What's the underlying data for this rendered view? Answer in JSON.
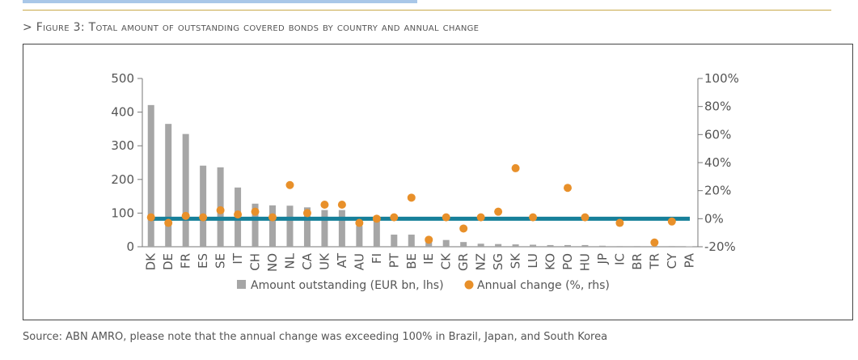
{
  "figure_title": "> Figure 3: Total amount of outstanding covered bonds by country and annual change",
  "source_note": "Source: ABN AMRO, please note that the annual change was exceeding 100% in Brazil, Japan, and South Korea",
  "colors": {
    "bars": "#a6a6a6",
    "dots": "#e8902a",
    "zero_line": "#17809a",
    "title_rule": "#c9a94a",
    "top_bar": "#a9c7e8"
  },
  "chart_data": {
    "type": "bar",
    "categories": [
      "DK",
      "DE",
      "FR",
      "ES",
      "SE",
      "IT",
      "CH",
      "NO",
      "NL",
      "CA",
      "UK",
      "AT",
      "AU",
      "FI",
      "PT",
      "BE",
      "IE",
      "CK",
      "GR",
      "NZ",
      "SG",
      "SK",
      "LU",
      "KO",
      "PO",
      "HU",
      "JP",
      "IC",
      "BR",
      "TR",
      "CY",
      "PA"
    ],
    "series": [
      {
        "name": "Amount outstanding (EUR bn, lhs)",
        "type": "bar",
        "axis": "left",
        "values": [
          421,
          365,
          335,
          241,
          236,
          176,
          128,
          123,
          122,
          117,
          109,
          109,
          62,
          80,
          36,
          36,
          25,
          20,
          14,
          9,
          8,
          7,
          6,
          5,
          5,
          5,
          3,
          2,
          2,
          2,
          2,
          1
        ]
      },
      {
        "name": "Annual change (%, rhs)",
        "type": "scatter",
        "axis": "right",
        "values": [
          1,
          -3,
          2,
          1,
          6,
          3,
          5,
          1,
          24,
          4,
          10,
          10,
          -3,
          0,
          1,
          15,
          -15,
          1,
          -7,
          1,
          5,
          36,
          1,
          null,
          22,
          1,
          null,
          -3,
          null,
          -17,
          -2,
          null
        ]
      }
    ],
    "y_left": {
      "ticks": [
        "0",
        "100",
        "200",
        "300",
        "400",
        "500"
      ],
      "lim": [
        0,
        500
      ]
    },
    "y_right": {
      "ticks": [
        "-20%",
        "0%",
        "20%",
        "40%",
        "60%",
        "80%",
        "100%"
      ],
      "lim": [
        -20,
        100
      ]
    },
    "legend_position": "bottom"
  }
}
